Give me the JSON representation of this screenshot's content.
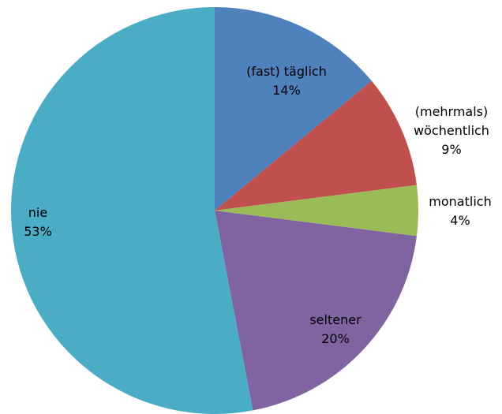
{
  "chart_data": {
    "type": "pie",
    "categories": [
      "(fast) täglich",
      "(mehrmals) wöchentlich",
      "monatlich",
      "seltener",
      "nie"
    ],
    "values": [
      14,
      9,
      4,
      20,
      53
    ],
    "value_labels": [
      "14%",
      "9%",
      "4%",
      "20%",
      "53%"
    ],
    "colors": [
      "#4f81bd",
      "#c0504d",
      "#9bbb59",
      "#8064a2",
      "#4bacc6"
    ]
  }
}
